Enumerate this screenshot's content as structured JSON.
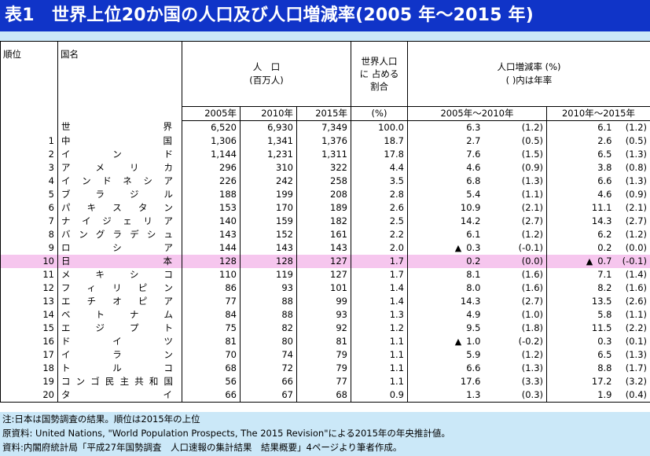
{
  "title": "表1　世界上位20か国の人口及び人口増減率(2005 年～2015 年)",
  "headers": {
    "rank": "順位",
    "country": "国名",
    "pop_l1": "人　口",
    "pop_l2": "(百万人)",
    "share_l1": "世界人口",
    "share_l2": "に 占める",
    "share_l3": "割合",
    "rate_l1": "人口増減率 (%)",
    "rate_l2": "( )内は年率",
    "y2005": "2005年",
    "y2010": "2010年",
    "y2015": "2015年",
    "pct": "(%)",
    "p1": "2005年～2010年",
    "p2": "2010年～2015年"
  },
  "rows": [
    {
      "rank": "",
      "name": "世　　界",
      "p2005": "6,520",
      "p2010": "6,930",
      "p2015": "7,349",
      "share": "100.0",
      "r1": "6.3",
      "a1": "(1.2)",
      "r2": "6.1",
      "a2": "(1.2)"
    },
    {
      "rank": "1",
      "name": "中　　国",
      "p2005": "1,306",
      "p2010": "1,341",
      "p2015": "1,376",
      "share": "18.7",
      "r1": "2.7",
      "a1": "(0.5)",
      "r2": "2.6",
      "a2": "(0.5)"
    },
    {
      "rank": "2",
      "name": "イ ン ド",
      "p2005": "1,144",
      "p2010": "1,231",
      "p2015": "1,311",
      "share": "17.8",
      "r1": "7.6",
      "a1": "(1.5)",
      "r2": "6.5",
      "a2": "(1.3)"
    },
    {
      "rank": "3",
      "name": "ア メ リ カ",
      "p2005": "296",
      "p2010": "310",
      "p2015": "322",
      "share": "4.4",
      "r1": "4.6",
      "a1": "(0.9)",
      "r2": "3.8",
      "a2": "(0.8)"
    },
    {
      "rank": "4",
      "name": "インドネシア",
      "p2005": "226",
      "p2010": "242",
      "p2015": "258",
      "share": "3.5",
      "r1": "6.8",
      "a1": "(1.3)",
      "r2": "6.6",
      "a2": "(1.3)"
    },
    {
      "rank": "5",
      "name": "ブ ラ ジ ル",
      "p2005": "188",
      "p2010": "199",
      "p2015": "208",
      "share": "2.8",
      "r1": "5.4",
      "a1": "(1.1)",
      "r2": "4.6",
      "a2": "(0.9)"
    },
    {
      "rank": "6",
      "name": "パ キ ス タ ン",
      "p2005": "153",
      "p2010": "170",
      "p2015": "189",
      "share": "2.6",
      "r1": "10.9",
      "a1": "(2.1)",
      "r2": "11.1",
      "a2": "(2.1)"
    },
    {
      "rank": "7",
      "name": "ナイジェリア",
      "p2005": "140",
      "p2010": "159",
      "p2015": "182",
      "share": "2.5",
      "r1": "14.2",
      "a1": "(2.7)",
      "r2": "14.3",
      "a2": "(2.7)"
    },
    {
      "rank": "8",
      "name": "バングラデシュ",
      "p2005": "143",
      "p2010": "152",
      "p2015": "161",
      "share": "2.2",
      "r1": "6.1",
      "a1": "(1.2)",
      "r2": "6.2",
      "a2": "(1.2)"
    },
    {
      "rank": "9",
      "name": "ロ シ ア",
      "p2005": "144",
      "p2010": "143",
      "p2015": "143",
      "share": "2.0",
      "r1": "0.3",
      "r1neg": true,
      "a1": "(-0.1)",
      "r2": "0.2",
      "a2": "(0.0)"
    },
    {
      "rank": "10",
      "name": "日　　本",
      "p2005": "128",
      "p2010": "128",
      "p2015": "127",
      "share": "1.7",
      "r1": "0.2",
      "a1": "(0.0)",
      "r2": "0.7",
      "r2neg": true,
      "a2": "(-0.1)",
      "highlight": true
    },
    {
      "rank": "11",
      "name": "メ キ シ コ",
      "p2005": "110",
      "p2010": "119",
      "p2015": "127",
      "share": "1.7",
      "r1": "8.1",
      "a1": "(1.6)",
      "r2": "7.1",
      "a2": "(1.4)"
    },
    {
      "rank": "12",
      "name": "フィリピン",
      "p2005": "86",
      "p2010": "93",
      "p2015": "101",
      "share": "1.4",
      "r1": "8.0",
      "a1": "(1.6)",
      "r2": "8.2",
      "a2": "(1.6)"
    },
    {
      "rank": "13",
      "name": "エチオピア",
      "p2005": "77",
      "p2010": "88",
      "p2015": "99",
      "share": "1.4",
      "r1": "14.3",
      "a1": "(2.7)",
      "r2": "13.5",
      "a2": "(2.6)"
    },
    {
      "rank": "14",
      "name": "ベ ト ナ ム",
      "p2005": "84",
      "p2010": "88",
      "p2015": "93",
      "share": "1.3",
      "r1": "4.9",
      "a1": "(1.0)",
      "r2": "5.8",
      "a2": "(1.1)"
    },
    {
      "rank": "15",
      "name": "エ ジ プ ト",
      "p2005": "75",
      "p2010": "82",
      "p2015": "92",
      "share": "1.2",
      "r1": "9.5",
      "a1": "(1.8)",
      "r2": "11.5",
      "a2": "(2.2)"
    },
    {
      "rank": "16",
      "name": "ド イ ツ",
      "p2005": "81",
      "p2010": "80",
      "p2015": "81",
      "share": "1.1",
      "r1": "1.0",
      "r1neg": true,
      "a1": "(-0.2)",
      "r2": "0.3",
      "a2": "(0.1)"
    },
    {
      "rank": "17",
      "name": "イ ラ ン",
      "p2005": "70",
      "p2010": "74",
      "p2015": "79",
      "share": "1.1",
      "r1": "5.9",
      "a1": "(1.2)",
      "r2": "6.5",
      "a2": "(1.3)"
    },
    {
      "rank": "18",
      "name": "ト ル コ",
      "p2005": "68",
      "p2010": "72",
      "p2015": "79",
      "share": "1.1",
      "r1": "6.6",
      "a1": "(1.3)",
      "r2": "8.8",
      "a2": "(1.7)"
    },
    {
      "rank": "19",
      "name": "コンゴ民主共和国",
      "p2005": "56",
      "p2010": "66",
      "p2015": "77",
      "share": "1.1",
      "r1": "17.6",
      "a1": "(3.3)",
      "r2": "17.2",
      "a2": "(3.2)"
    },
    {
      "rank": "20",
      "name": "タ イ",
      "p2005": "66",
      "p2010": "67",
      "p2015": "68",
      "share": "0.9",
      "r1": "1.3",
      "a1": "(0.3)",
      "r2": "1.9",
      "a2": "(0.4)"
    }
  ],
  "negative_marker": "▲",
  "notes": [
    "注:日本は国勢調査の結果。順位は2015年の上位",
    "原資料: United Nations, \"World Population Prospects, The 2015 Revision\"による2015年の年央推計値。",
    "資料:内閣府統計局「平成27年国勢調査　人口速報の集計結果　結果概要」4ページより筆者作成。"
  ],
  "colors": {
    "title_bg": "#1034c8",
    "title_fg": "#ffffff",
    "band_bg": "#cbe8f8",
    "highlight_bg": "#f6c6ee"
  }
}
